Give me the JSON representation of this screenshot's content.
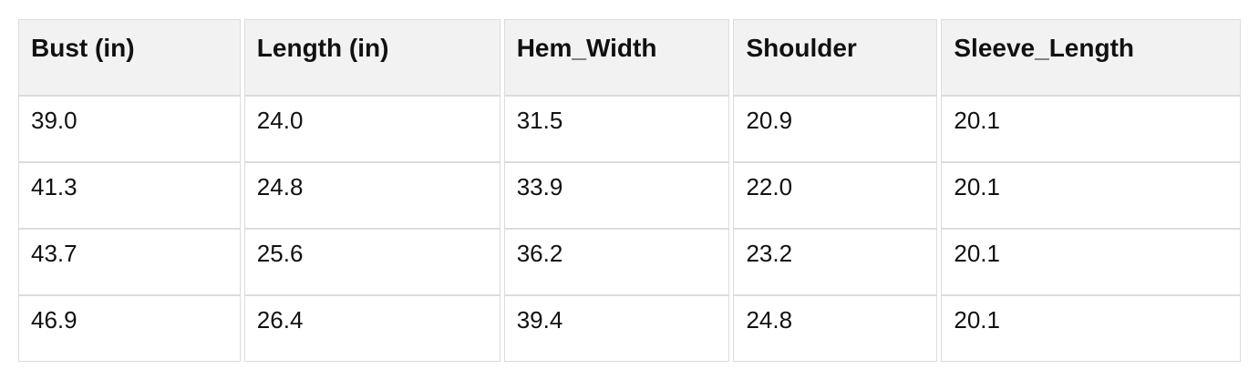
{
  "chart_data": {
    "type": "table",
    "columns": [
      "Bust (in)",
      "Length (in)",
      "Hem_Width",
      "Shoulder",
      "Sleeve_Length"
    ],
    "rows": [
      [
        "39.0",
        "24.0",
        "31.5",
        "20.9",
        "20.1"
      ],
      [
        "41.3",
        "24.8",
        "33.9",
        "22.0",
        "20.1"
      ],
      [
        "43.7",
        "25.6",
        "36.2",
        "23.2",
        "20.1"
      ],
      [
        "46.9",
        "26.4",
        "39.4",
        "24.8",
        "20.1"
      ]
    ],
    "layout": {
      "header_position": "top",
      "grid": "cell-borders-with-column-gaps",
      "text_align": "left"
    }
  },
  "colors": {
    "page_bg": "#ffffff",
    "header_bg": "#f2f2f2",
    "border": "#dcdcdc",
    "text": "#111111"
  }
}
